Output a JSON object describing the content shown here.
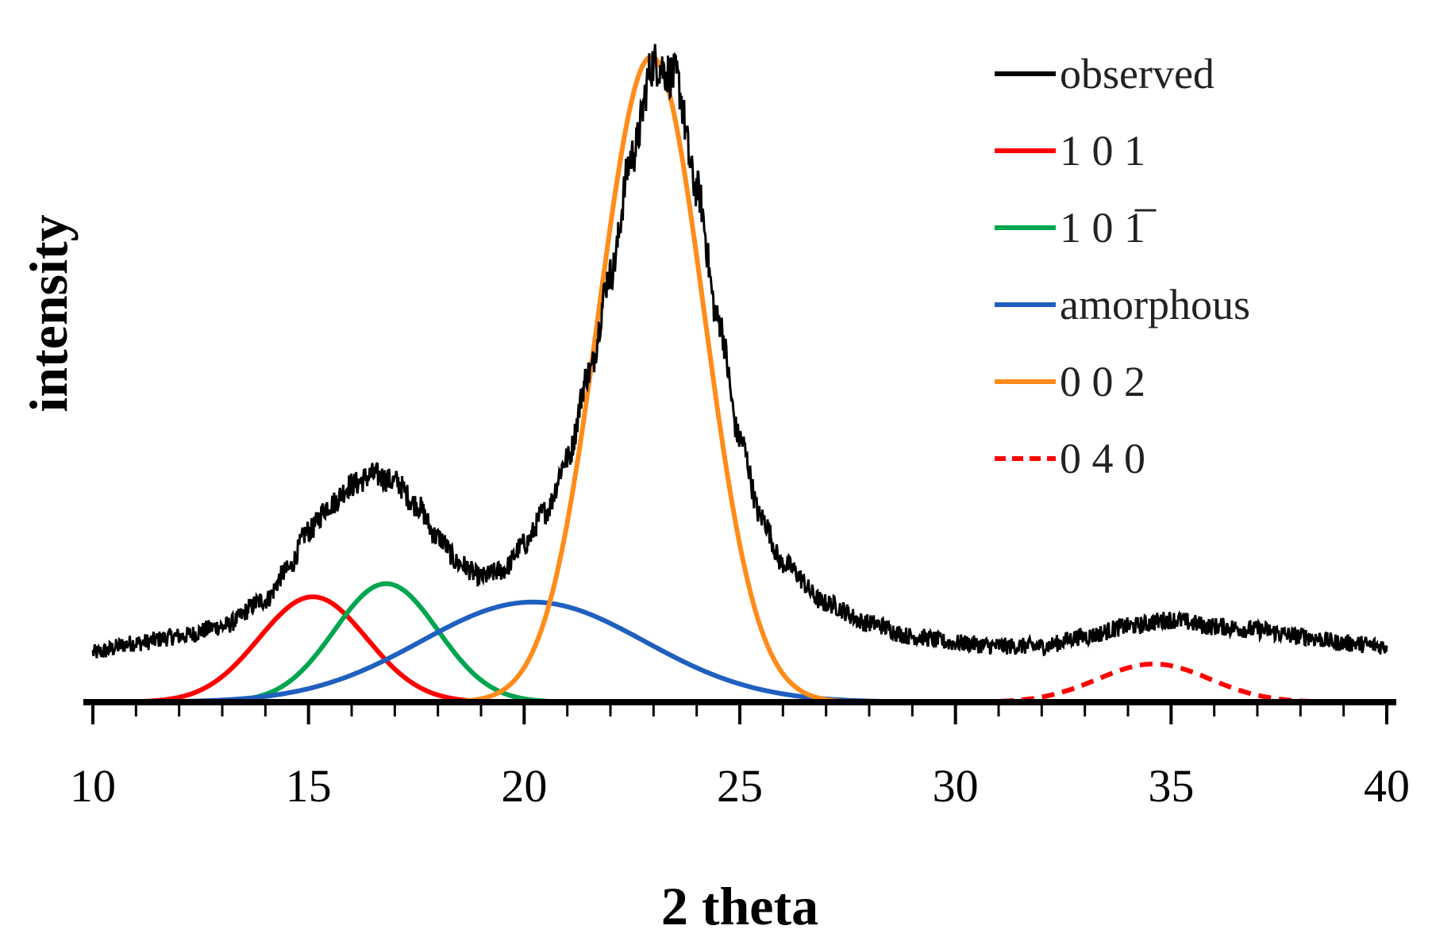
{
  "chart_data": {
    "type": "line",
    "title": "",
    "xlabel": "2 theta",
    "ylabel": "intensity",
    "xlim": [
      10,
      40
    ],
    "ylim": [
      0,
      1
    ],
    "xticks": [
      "10",
      "15",
      "20",
      "25",
      "30",
      "35",
      "40"
    ],
    "grid": false,
    "legend_position": "top-right",
    "observed": {
      "name": "observed",
      "color": "#000000",
      "style": "noisy",
      "points": [
        [
          10,
          0.075
        ],
        [
          11,
          0.09
        ],
        [
          12,
          0.1
        ],
        [
          13,
          0.115
        ],
        [
          14,
          0.155
        ],
        [
          14.5,
          0.2
        ],
        [
          15,
          0.26
        ],
        [
          15.5,
          0.3
        ],
        [
          16,
          0.33
        ],
        [
          16.5,
          0.345
        ],
        [
          17,
          0.335
        ],
        [
          17.5,
          0.3
        ],
        [
          18,
          0.25
        ],
        [
          18.5,
          0.21
        ],
        [
          19,
          0.19
        ],
        [
          19.5,
          0.2
        ],
        [
          20,
          0.24
        ],
        [
          20.5,
          0.29
        ],
        [
          21,
          0.37
        ],
        [
          21.5,
          0.5
        ],
        [
          22,
          0.65
        ],
        [
          22.5,
          0.83
        ],
        [
          23,
          0.97
        ],
        [
          23.5,
          0.95
        ],
        [
          24,
          0.78
        ],
        [
          24.5,
          0.58
        ],
        [
          25,
          0.4
        ],
        [
          25.5,
          0.28
        ],
        [
          26,
          0.21
        ],
        [
          27,
          0.15
        ],
        [
          28,
          0.12
        ],
        [
          29,
          0.1
        ],
        [
          30,
          0.09
        ],
        [
          31,
          0.085
        ],
        [
          32,
          0.085
        ],
        [
          33,
          0.1
        ],
        [
          34,
          0.115
        ],
        [
          35,
          0.125
        ],
        [
          36,
          0.115
        ],
        [
          37,
          0.11
        ],
        [
          38,
          0.1
        ],
        [
          39,
          0.09
        ],
        [
          40,
          0.085
        ]
      ]
    },
    "series": [
      {
        "name": "1 0 1",
        "color": "#ff0000",
        "dashed": false,
        "center": 15.1,
        "sigma": 1.25,
        "amplitude": 0.16
      },
      {
        "name": "1 0 1̅",
        "color": "#00a550",
        "dashed": false,
        "center": 16.8,
        "sigma": 1.2,
        "amplitude": 0.18
      },
      {
        "name": "amorphous",
        "color": "#1f5fbf",
        "dashed": false,
        "center": 20.2,
        "sigma": 2.6,
        "amplitude": 0.152
      },
      {
        "name": "0 0 2",
        "color": "#ff8c1a",
        "dashed": false,
        "center": 22.95,
        "sigma": 1.22,
        "amplitude": 0.98
      },
      {
        "name": "0 4 0",
        "color": "#ff0000",
        "dashed": true,
        "center": 34.6,
        "sigma": 1.3,
        "amplitude": 0.058
      }
    ]
  }
}
